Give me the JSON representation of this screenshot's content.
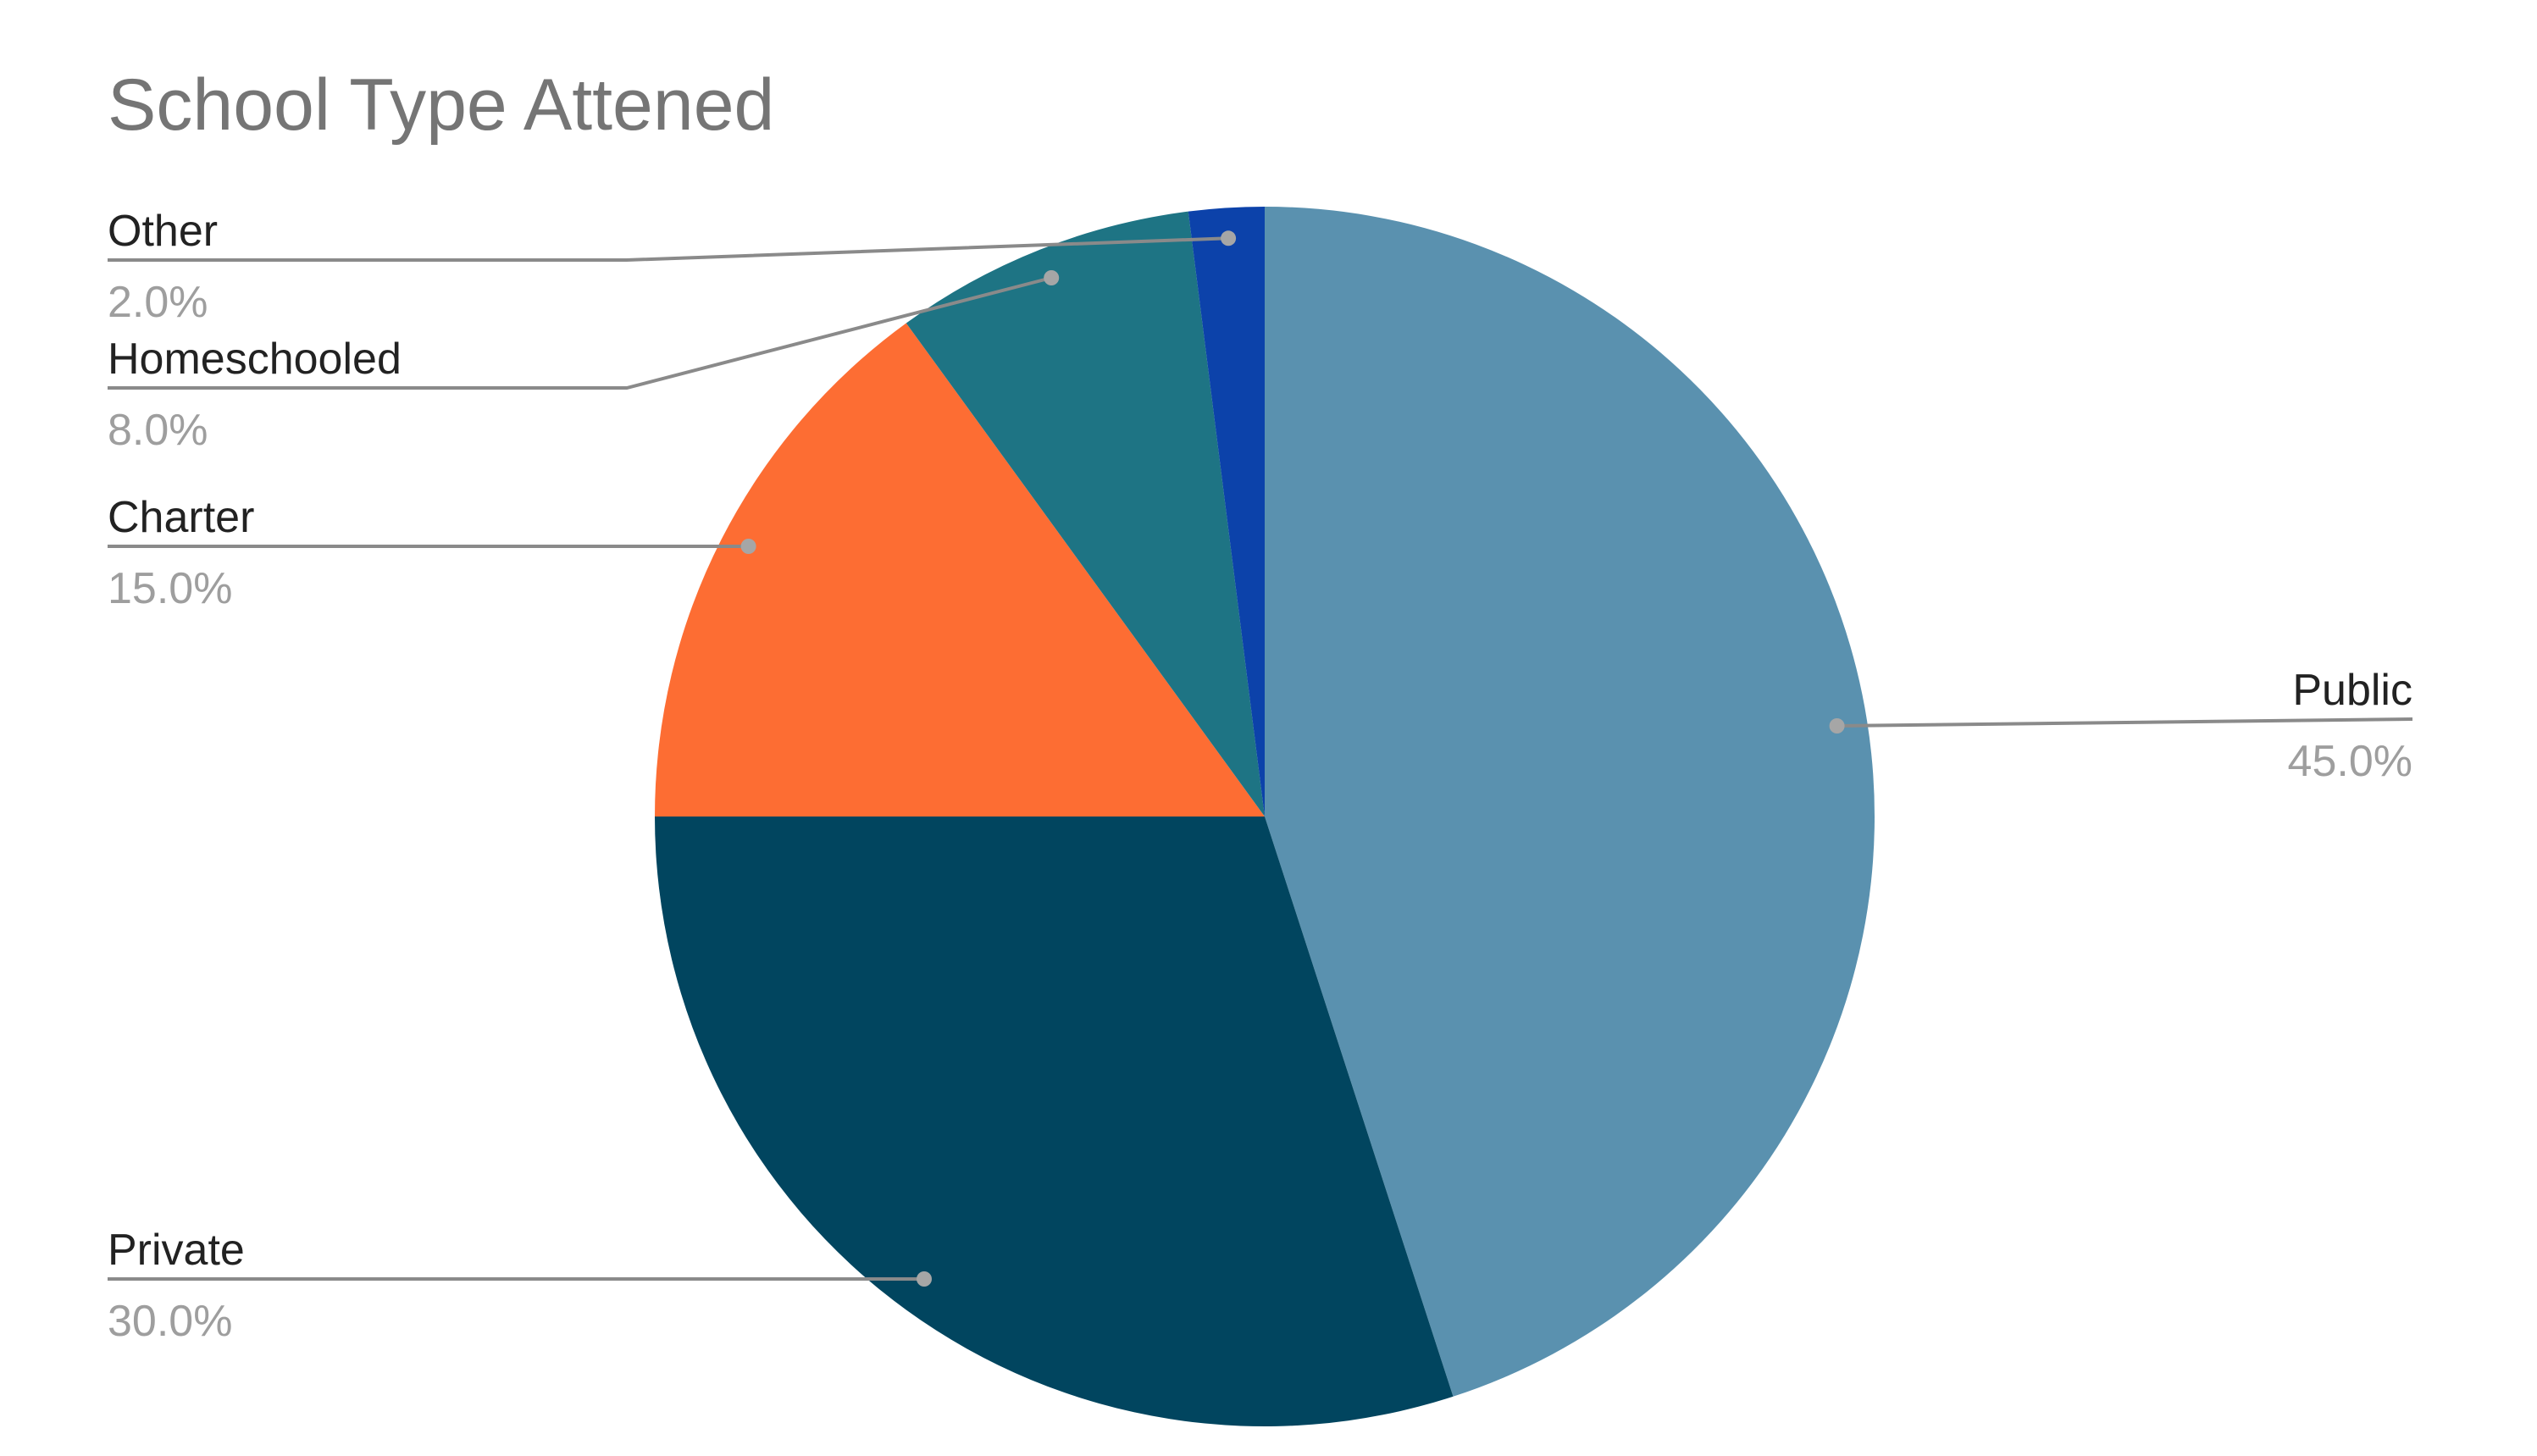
{
  "chart_data": {
    "type": "pie",
    "title": "School Type Attened",
    "slices": [
      {
        "name": "Public",
        "value": 45.0,
        "label": "45.0%",
        "color": "#5a91af"
      },
      {
        "name": "Private",
        "value": 30.0,
        "label": "30.0%",
        "color": "#01455f"
      },
      {
        "name": "Charter",
        "value": 15.0,
        "label": "15.0%",
        "color": "#fd6d33"
      },
      {
        "name": "Homeschooled",
        "value": 8.0,
        "label": "8.0%",
        "color": "#1e7484"
      },
      {
        "name": "Other",
        "value": 2.0,
        "label": "2.0%",
        "color": "#0c42aa"
      }
    ],
    "start_angle": "12 o'clock",
    "direction": "clockwise",
    "legend": "none",
    "data_labels": "outside with leader lines"
  }
}
